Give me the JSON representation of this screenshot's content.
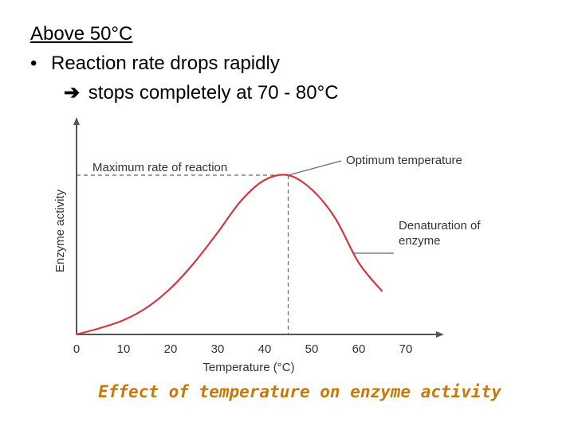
{
  "slide": {
    "heading": "Above 50°C",
    "bullet": "•",
    "line1": "Reaction rate drops rapidly",
    "arrow": "➔",
    "line2": "stops completely at 70 - 80°C"
  },
  "colors": {
    "curve": "#d2373f",
    "axis": "#555555",
    "caption": "#c8780a"
  },
  "chart_data": {
    "type": "line",
    "title": "",
    "xlabel": "Temperature (°C)",
    "ylabel": "Enzyme activity",
    "xticks": [
      0,
      10,
      20,
      30,
      40,
      50,
      60,
      70
    ],
    "tick_labels": [
      "0",
      "10",
      "20",
      "30",
      "40",
      "50",
      "60",
      "70"
    ],
    "xlim": [
      0,
      75
    ],
    "ylim": [
      0,
      100
    ],
    "series": [
      {
        "name": "Enzyme activity",
        "x": [
          0,
          5,
          10,
          15,
          20,
          25,
          30,
          35,
          40,
          45,
          50,
          55,
          60,
          65
        ],
        "y": [
          0,
          4,
          9,
          17,
          29,
          45,
          64,
          84,
          97,
          100,
          91,
          73,
          45,
          27
        ]
      }
    ],
    "annotations": {
      "max_rate": "Maximum rate of reaction",
      "optimum": "Optimum temperature",
      "denaturation_line1": "Denaturation of",
      "denaturation_line2": "enzyme"
    },
    "optimum_x": 45,
    "optimum_y": 100,
    "denaturation_x": 59,
    "denaturation_y": 51
  },
  "caption": "Effect of temperature on enzyme activity"
}
